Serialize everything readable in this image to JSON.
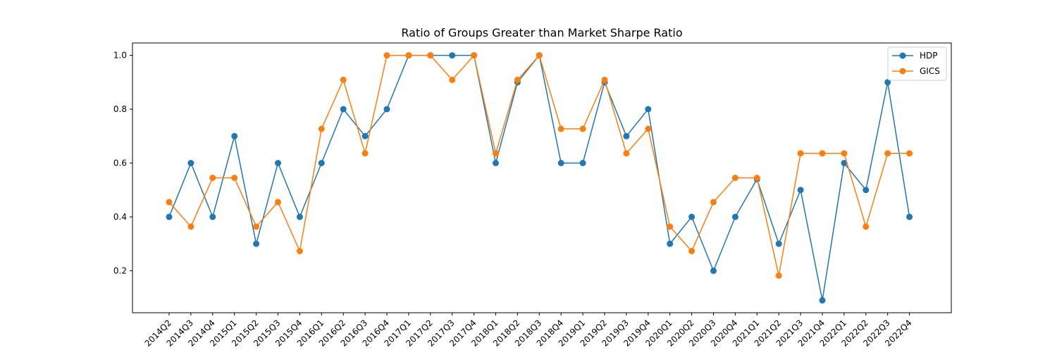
{
  "chart_data": {
    "type": "line",
    "title": "Ratio of Groups Greater than Market Sharpe Ratio",
    "xlabel": "",
    "ylabel": "",
    "categories": [
      "2014Q2",
      "2014Q3",
      "2014Q4",
      "2015Q1",
      "2015Q2",
      "2015Q3",
      "2015Q4",
      "2016Q1",
      "2016Q2",
      "2016Q3",
      "2016Q4",
      "2017Q1",
      "2017Q2",
      "2017Q3",
      "2017Q4",
      "2018Q1",
      "2018Q2",
      "2018Q3",
      "2018Q4",
      "2019Q1",
      "2019Q2",
      "2019Q3",
      "2019Q4",
      "2020Q1",
      "2020Q2",
      "2020Q3",
      "2020Q4",
      "2021Q1",
      "2021Q2",
      "2021Q3",
      "2021Q4",
      "2022Q1",
      "2022Q2",
      "2022Q3",
      "2022Q4"
    ],
    "series": [
      {
        "name": "HDP",
        "color": "#1f77b4",
        "values": [
          0.4,
          0.6,
          0.4,
          0.7,
          0.3,
          0.6,
          0.4,
          0.6,
          0.8,
          0.7,
          0.8,
          1.0,
          1.0,
          1.0,
          1.0,
          0.6,
          0.9,
          1.0,
          0.6,
          0.6,
          0.9,
          0.7,
          0.8,
          0.3,
          0.4,
          0.2,
          0.4,
          0.54,
          0.3,
          0.5,
          0.09,
          0.6,
          0.5,
          0.9,
          0.4
        ]
      },
      {
        "name": "GICS",
        "color": "#ff7f0e",
        "values": [
          0.455,
          0.364,
          0.545,
          0.545,
          0.364,
          0.455,
          0.273,
          0.727,
          0.909,
          0.636,
          1.0,
          1.0,
          1.0,
          0.909,
          1.0,
          0.636,
          0.909,
          1.0,
          0.727,
          0.727,
          0.909,
          0.636,
          0.727,
          0.364,
          0.273,
          0.455,
          0.545,
          0.545,
          0.182,
          0.636,
          0.636,
          0.636,
          0.364,
          0.636,
          0.636
        ]
      }
    ],
    "yticks": [
      "0.2",
      "0.4",
      "0.6",
      "0.8",
      "1.0"
    ],
    "ylim": [
      0.044,
      1.046
    ],
    "grid": false,
    "legend_position": "top-right"
  }
}
